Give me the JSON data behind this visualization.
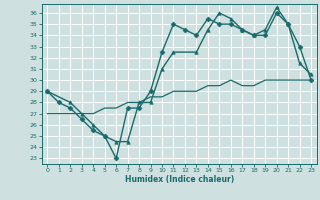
{
  "xlabel": "Humidex (Indice chaleur)",
  "bg_color": "#cfe0e0",
  "grid_color": "#ffffff",
  "line_color": "#1a6b6b",
  "xlim": [
    -0.5,
    23.5
  ],
  "ylim": [
    22.5,
    36.8
  ],
  "yticks": [
    23,
    24,
    25,
    26,
    27,
    28,
    29,
    30,
    31,
    32,
    33,
    34,
    35,
    36
  ],
  "xticks": [
    0,
    1,
    2,
    3,
    4,
    5,
    6,
    7,
    8,
    9,
    10,
    11,
    12,
    13,
    14,
    15,
    16,
    17,
    18,
    19,
    20,
    21,
    22,
    23
  ],
  "series": [
    {
      "x": [
        0,
        1,
        2,
        3,
        4,
        5,
        6,
        7,
        8,
        9,
        10,
        11,
        12,
        13,
        14,
        15,
        16,
        17,
        18,
        19,
        20,
        21,
        22,
        23
      ],
      "y": [
        29,
        28,
        27.5,
        26.5,
        25.5,
        25,
        23,
        27.5,
        27.5,
        29,
        32.5,
        35,
        34.5,
        34,
        35.5,
        35,
        35,
        34.5,
        34,
        34,
        36,
        35,
        33,
        30
      ],
      "marker": "D",
      "markersize": 2.5,
      "linewidth": 1.0
    },
    {
      "x": [
        0,
        2,
        3,
        4,
        5,
        6,
        7,
        8,
        9,
        10,
        11,
        13,
        14,
        15,
        16,
        17,
        18,
        19,
        20,
        21,
        22,
        23
      ],
      "y": [
        29,
        28,
        27,
        26,
        25,
        24.5,
        24.5,
        28,
        28,
        31,
        32.5,
        32.5,
        34.5,
        36,
        35.5,
        34.5,
        34,
        34.5,
        36.5,
        35,
        31.5,
        30.5
      ],
      "marker": "^",
      "markersize": 2.5,
      "linewidth": 1.0
    },
    {
      "x": [
        0,
        1,
        2,
        3,
        4,
        5,
        6,
        7,
        8,
        9,
        10,
        11,
        12,
        13,
        14,
        15,
        16,
        17,
        18,
        19,
        20,
        21,
        22,
        23
      ],
      "y": [
        27,
        27,
        27,
        27,
        27,
        27.5,
        27.5,
        28,
        28,
        28.5,
        28.5,
        29,
        29,
        29,
        29.5,
        29.5,
        30,
        29.5,
        29.5,
        30,
        30,
        30,
        30,
        30
      ],
      "marker": null,
      "markersize": 0,
      "linewidth": 0.9
    }
  ]
}
